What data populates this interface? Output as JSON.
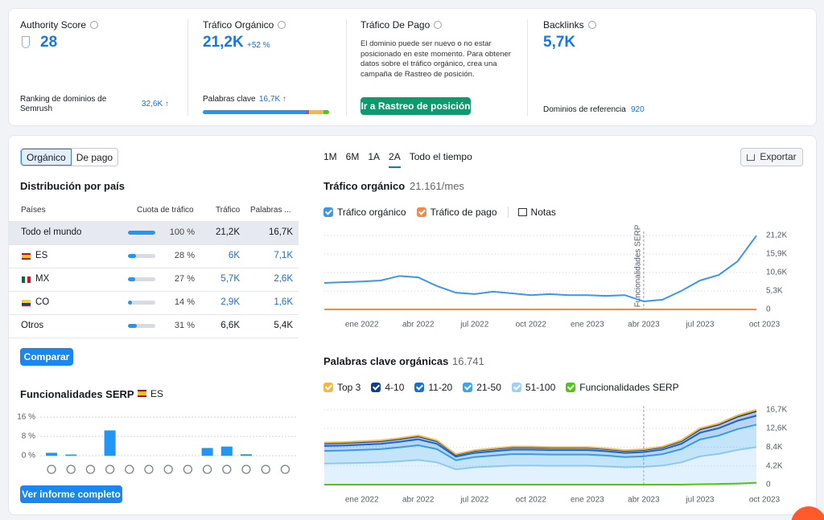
{
  "metrics": [
    {
      "title": "Authority Score",
      "value": "28",
      "footer_label": "Ranking de dominios de Semrush",
      "footer_value": "32,6K ↑"
    },
    {
      "title": "Tráfico Orgánico",
      "value": "21,2K",
      "change": "+52 %",
      "footer_label": "Palabras clave",
      "footer_value": "16,7K ↑"
    },
    {
      "title": "Tráfico De Pago",
      "text": "El dominio puede ser nuevo o no estar posicionado en este momento. Para obtener datos sobre el tráfico orgánico, crea una campaña de Rastreo de posición.",
      "button": "Ir a Rastreo de posición"
    },
    {
      "title": "Backlinks",
      "value": "5,7K",
      "footer_label": "Dominios de referencia",
      "footer_value": "920"
    }
  ],
  "tabs": [
    "Orgánico",
    "De pago"
  ],
  "distribution": {
    "title": "Distribución por país",
    "columns": [
      "Países",
      "Cuota de tráfico",
      "Tráfico",
      "Palabras ..."
    ],
    "rows": [
      {
        "country": "Todo el mundo",
        "share": 100,
        "share_label": "100 %",
        "traffic": "21,2K",
        "keywords": "16,7K"
      },
      {
        "country": "ES",
        "flag": {
          "dir": "h",
          "colors": [
            "#c60b1e",
            "#ffc400",
            "#ffc400",
            "#c60b1e"
          ]
        },
        "share": 28,
        "share_label": "28 %",
        "traffic": "6K",
        "keywords": "7,1K"
      },
      {
        "country": "MX",
        "flag": {
          "dir": "v",
          "colors": [
            "#006847",
            "#ffffff",
            "#ce1126"
          ]
        },
        "share": 27,
        "share_label": "27 %",
        "traffic": "5,7K",
        "keywords": "2,6K"
      },
      {
        "country": "CO",
        "flag": {
          "dir": "h",
          "colors": [
            "#fcd116",
            "#fcd116",
            "#003893",
            "#ce1126"
          ]
        },
        "share": 14,
        "share_label": "14 %",
        "traffic": "2,9K",
        "keywords": "1,6K"
      },
      {
        "country": "Otros",
        "share": 31,
        "share_label": "31 %",
        "traffic": "6,6K",
        "keywords": "5,4K"
      }
    ]
  },
  "compare_button": "Comparar",
  "full_report_button": "Ver informe completo",
  "periods": {
    "options": [
      "1M",
      "6M",
      "1A",
      "2A",
      "Todo el tiempo"
    ],
    "active": 3
  },
  "export": "Exportar",
  "chart_data": [
    {
      "type": "bar",
      "title": "Funcionalidades SERP",
      "region": "ES",
      "region_flag": {
        "dir": "h",
        "colors": [
          "#c60b1e",
          "#ffc400",
          "#ffc400",
          "#c60b1e"
        ]
      },
      "categories": [
        null,
        null,
        null,
        null,
        null,
        null,
        null,
        null,
        null,
        null,
        null,
        null,
        null
      ],
      "values": [
        1.2,
        0.5,
        0,
        10.5,
        0,
        0,
        0,
        0,
        3.2,
        3.8,
        0.6,
        0,
        0
      ],
      "color": "#2196f3",
      "ylim": [
        0,
        16
      ],
      "yticks": [
        {
          "value": 0,
          "label": "0 %"
        },
        {
          "value": 8,
          "label": "8 %"
        },
        {
          "value": 16,
          "label": "16 %"
        }
      ],
      "grid": true
    },
    {
      "type": "line",
      "title": "Tráfico orgánico",
      "subtitle": "21.161/mes",
      "notes": "Notas",
      "annotation": "Funcionalidades SERP",
      "categories": [
        null,
        null,
        "ene 2022",
        null,
        null,
        "abr 2022",
        null,
        null,
        "jul 2022",
        null,
        null,
        "oct 2022",
        null,
        null,
        "ene 2023",
        null,
        null,
        "abr 2023",
        null,
        null,
        "jul 2023",
        null,
        null,
        "oct 2023"
      ],
      "series": [
        {
          "name": "Tráfico orgánico",
          "color": "#3d97e6",
          "values": [
            7600,
            7800,
            8000,
            8300,
            9600,
            9200,
            6700,
            4800,
            4400,
            5100,
            4600,
            4100,
            4400,
            4100,
            4100,
            3900,
            4100,
            2300,
            2800,
            5300,
            8300,
            9900,
            13800,
            21161
          ]
        },
        {
          "name": "Tráfico de pago",
          "color": "#f0894a",
          "values": [
            0,
            0,
            0,
            0,
            0,
            0,
            0,
            0,
            0,
            0,
            0,
            0,
            0,
            0,
            0,
            0,
            0,
            0,
            0,
            0,
            0,
            0,
            0,
            0
          ]
        }
      ],
      "ylim": [
        0,
        21200
      ],
      "yticks": [
        0,
        {
          "value": 5300,
          "label": "5,3K"
        },
        {
          "value": 10600,
          "label": "10,6K"
        },
        {
          "value": 15900,
          "label": "15,9K"
        },
        {
          "value": 21200,
          "label": "21,2K"
        }
      ],
      "grid": true
    },
    {
      "type": "area",
      "stacked": true,
      "title": "Palabras clave orgánicas",
      "subtitle": "16.741",
      "categories": [
        null,
        null,
        "ene 2022",
        null,
        null,
        "abr 2022",
        null,
        null,
        "jul 2022",
        null,
        null,
        "oct 2022",
        null,
        null,
        "ene 2023",
        null,
        null,
        "abr 2023",
        null,
        null,
        "jul 2023",
        null,
        null,
        "oct 2023"
      ],
      "series": [
        {
          "name": "Top 3",
          "color": "#f5b942",
          "values": [
            190,
            190,
            200,
            200,
            210,
            220,
            200,
            140,
            150,
            160,
            170,
            170,
            170,
            170,
            170,
            160,
            150,
            160,
            170,
            200,
            250,
            270,
            310,
            340
          ]
        },
        {
          "name": "4-10",
          "color": "#0d3f8f",
          "values": [
            560,
            570,
            580,
            590,
            620,
            660,
            590,
            410,
            460,
            490,
            510,
            510,
            500,
            500,
            500,
            490,
            460,
            470,
            510,
            590,
            760,
            820,
            930,
            1000
          ]
        },
        {
          "name": "11-20",
          "color": "#1a6fd6",
          "values": [
            1130,
            1140,
            1160,
            1190,
            1250,
            1320,
            1190,
            820,
            920,
            970,
            1020,
            1020,
            1010,
            1010,
            1010,
            970,
            920,
            950,
            1020,
            1190,
            1510,
            1640,
            1860,
            2010
          ]
        },
        {
          "name": "21-50",
          "color": "#3ba4ee",
          "values": [
            2820,
            2850,
            2910,
            2970,
            3120,
            3300,
            2970,
            2040,
            2310,
            2430,
            2550,
            2550,
            2520,
            2520,
            2520,
            2430,
            2310,
            2370,
            2550,
            2970,
            3780,
            4110,
            4650,
            5020
          ]
        },
        {
          "name": "51-100",
          "color": "#9cd0f7",
          "values": [
            4700,
            4750,
            4850,
            4950,
            5200,
            5500,
            4950,
            3400,
            3850,
            4050,
            4250,
            4250,
            4200,
            4200,
            4200,
            4050,
            3850,
            3950,
            4250,
            4950,
            6300,
            6850,
            7750,
            8370
          ]
        },
        {
          "name": "Funcionalidades SERP",
          "color": "#52c41a",
          "type": "line",
          "values": [
            0,
            0,
            0,
            0,
            0,
            0,
            0,
            0,
            0,
            0,
            0,
            0,
            0,
            0,
            0,
            0,
            0,
            0,
            0,
            0,
            80,
            150,
            250,
            420
          ]
        }
      ],
      "ylim": [
        0,
        16700
      ],
      "yticks": [
        0,
        {
          "value": 4200,
          "label": "4,2K"
        },
        {
          "value": 8400,
          "label": "8,4K"
        },
        {
          "value": 12600,
          "label": "12,6K"
        },
        {
          "value": 16700,
          "label": "16,7K"
        }
      ],
      "grid": true
    }
  ]
}
